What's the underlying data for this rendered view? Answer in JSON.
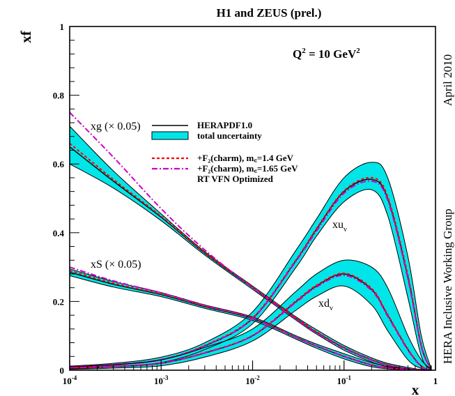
{
  "chart_data": {
    "type": "line",
    "title": "H1 and ZEUS (prel.)",
    "xlabel": "x",
    "ylabel": "xf",
    "xscale": "log",
    "xlim": [
      0.0001,
      1
    ],
    "ylim": [
      0,
      1
    ],
    "x_ticks": [
      {
        "value": 0.0001,
        "base": "10",
        "exp": "-4"
      },
      {
        "value": 0.001,
        "base": "10",
        "exp": "-3"
      },
      {
        "value": 0.01,
        "base": "10",
        "exp": "-2"
      },
      {
        "value": 0.1,
        "base": "10",
        "exp": "-1"
      },
      {
        "value": 1,
        "base": "1",
        "exp": ""
      }
    ],
    "y_ticks": [
      {
        "value": 0,
        "label": "0"
      },
      {
        "value": 0.2,
        "label": "0.2"
      },
      {
        "value": 0.4,
        "label": "0.4"
      },
      {
        "value": 0.6,
        "label": "0.6"
      },
      {
        "value": 0.8,
        "label": "0.8"
      },
      {
        "value": 1,
        "label": "1"
      }
    ],
    "grid": false,
    "annotation_q2": {
      "base": "Q",
      "sup": "2",
      "rest": " = 10 GeV",
      "unit_sup": "2"
    },
    "side_text": [
      "April 2010",
      "HERA Inclusive Working Group"
    ],
    "curve_labels": {
      "xg": "xg (× 0.05)",
      "xS": "xS (× 0.05)",
      "xuv": {
        "base": "xu",
        "sub": "v"
      },
      "xdv": {
        "base": "xd",
        "sub": "v"
      }
    },
    "legend": {
      "placement": "center",
      "entries": [
        {
          "text": "HERAPDF1.0",
          "style": "line",
          "color": "#000000"
        },
        {
          "text": "total uncertainty",
          "style": "band",
          "color": "#00e5e8"
        },
        {
          "text": "+F₂(charm), m꜀=1.4 GeV",
          "style": "dashed",
          "color": "#ff0000"
        },
        {
          "text": "+F₂(charm), m꜀=1.65 GeV",
          "style": "dashdot",
          "color": "#cc00cc"
        },
        {
          "text": "RT VFN Optimized",
          "style": "none",
          "color": "#000000"
        }
      ]
    },
    "x": [
      0.0001,
      0.0003,
      0.001,
      0.003,
      0.01,
      0.03,
      0.05,
      0.1,
      0.2,
      0.3,
      0.5,
      0.7,
      0.9
    ],
    "series": [
      {
        "name": "xg (× 0.05)",
        "central": [
          0.65,
          0.55,
          0.445,
          0.34,
          0.24,
          0.15,
          0.11,
          0.065,
          0.03,
          0.015,
          0.004,
          0.001,
          0
        ],
        "upper": [
          0.71,
          0.58,
          0.455,
          0.345,
          0.245,
          0.155,
          0.118,
          0.072,
          0.036,
          0.02,
          0.008,
          0.002,
          0
        ],
        "lower": [
          0.6,
          0.53,
          0.435,
          0.335,
          0.235,
          0.145,
          0.105,
          0.058,
          0.024,
          0.01,
          0.002,
          0.0005,
          0
        ],
        "charm14": [
          0.66,
          0.555,
          0.448,
          0.342,
          0.242,
          0.152,
          0.112,
          0.066,
          0.031,
          0.016,
          0.004,
          0.001,
          0
        ],
        "charm165": [
          0.75,
          0.62,
          0.47,
          0.35,
          0.24,
          0.148,
          0.108,
          0.063,
          0.029,
          0.014,
          0.004,
          0.001,
          0
        ]
      },
      {
        "name": "xS (× 0.05)",
        "central": [
          0.285,
          0.25,
          0.22,
          0.185,
          0.15,
          0.095,
          0.07,
          0.04,
          0.015,
          0.007,
          0.002,
          0.0005,
          0
        ],
        "upper": [
          0.295,
          0.258,
          0.226,
          0.19,
          0.155,
          0.1,
          0.076,
          0.048,
          0.022,
          0.011,
          0.004,
          0.001,
          0
        ],
        "lower": [
          0.275,
          0.242,
          0.214,
          0.18,
          0.145,
          0.09,
          0.064,
          0.033,
          0.01,
          0.004,
          0.001,
          0.0002,
          0
        ],
        "charm14": [
          0.29,
          0.253,
          0.222,
          0.187,
          0.152,
          0.096,
          0.071,
          0.041,
          0.016,
          0.007,
          0.002,
          0.0005,
          0
        ],
        "charm165": [
          0.3,
          0.26,
          0.225,
          0.188,
          0.152,
          0.095,
          0.07,
          0.04,
          0.015,
          0.007,
          0.002,
          0.0005,
          0
        ]
      },
      {
        "name": "xu_v",
        "central": [
          0.008,
          0.015,
          0.03,
          0.07,
          0.15,
          0.32,
          0.41,
          0.52,
          0.555,
          0.5,
          0.27,
          0.07,
          0.002
        ],
        "upper": [
          0.012,
          0.02,
          0.038,
          0.08,
          0.17,
          0.35,
          0.44,
          0.56,
          0.605,
          0.56,
          0.33,
          0.1,
          0.005
        ],
        "lower": [
          0.004,
          0.01,
          0.022,
          0.06,
          0.135,
          0.3,
          0.39,
          0.49,
          0.525,
          0.45,
          0.21,
          0.04,
          0.001
        ],
        "charm14": [
          0.009,
          0.016,
          0.031,
          0.072,
          0.152,
          0.322,
          0.412,
          0.522,
          0.56,
          0.505,
          0.275,
          0.072,
          0.002
        ],
        "charm165": [
          0.009,
          0.016,
          0.031,
          0.071,
          0.15,
          0.318,
          0.405,
          0.515,
          0.55,
          0.495,
          0.265,
          0.068,
          0.002
        ]
      },
      {
        "name": "xd_v",
        "central": [
          0.006,
          0.01,
          0.02,
          0.05,
          0.1,
          0.2,
          0.245,
          0.28,
          0.235,
          0.16,
          0.06,
          0.012,
          0
        ],
        "upper": [
          0.01,
          0.016,
          0.03,
          0.066,
          0.12,
          0.23,
          0.28,
          0.32,
          0.3,
          0.24,
          0.1,
          0.03,
          0.002
        ],
        "lower": [
          0.003,
          0.006,
          0.013,
          0.038,
          0.085,
          0.175,
          0.215,
          0.245,
          0.19,
          0.115,
          0.03,
          0.005,
          0
        ],
        "charm14": [
          0.007,
          0.011,
          0.021,
          0.051,
          0.101,
          0.202,
          0.247,
          0.282,
          0.238,
          0.162,
          0.061,
          0.012,
          0
        ],
        "charm165": [
          0.007,
          0.011,
          0.021,
          0.05,
          0.1,
          0.198,
          0.242,
          0.276,
          0.232,
          0.157,
          0.058,
          0.011,
          0
        ]
      }
    ]
  }
}
